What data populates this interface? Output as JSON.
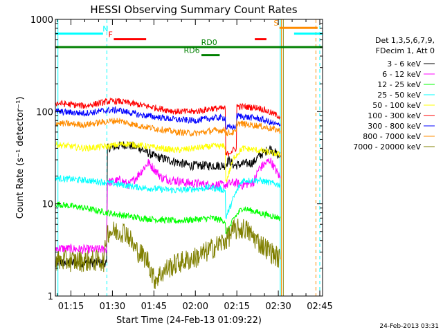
{
  "chart_data": {
    "type": "line",
    "title": "HESSI Observing Summary Count Rates",
    "xlabel": "Start Time (24-Feb-13 01:09:22)",
    "ylabel": "Count Rate (s⁻¹ detector⁻¹)",
    "yscale": "log",
    "ylim": [
      1,
      1000
    ],
    "xlim_minutes": [
      69.37,
      166
    ],
    "x_tick_labels": [
      "01:15",
      "01:30",
      "01:45",
      "02:00",
      "02:15",
      "02:30",
      "02:45"
    ],
    "x_tick_minutes": [
      75,
      90,
      105,
      120,
      135,
      150,
      165
    ],
    "y_tick_labels": [
      "1",
      "10",
      "100",
      "1000"
    ],
    "y_tick_values": [
      1,
      10,
      100,
      1000
    ],
    "legend": {
      "placement": "right",
      "header_line1": "Det 1,3,5,6,7,9,",
      "header_line2": "FDecim 1, Att 0"
    },
    "series": [
      {
        "name": "3 - 6 keV",
        "color": "#000000",
        "x": [
          69.4,
          83,
          87.9,
          88.2,
          95,
          100,
          105,
          110,
          118,
          126,
          130.8,
          132,
          134,
          137,
          141,
          143,
          147,
          150.7
        ],
        "values": [
          2.3,
          2.3,
          2.3,
          40,
          44,
          40,
          33,
          30,
          26,
          26,
          26,
          30,
          26,
          27,
          28,
          33,
          40,
          32
        ]
      },
      {
        "name": "6 - 12 keV",
        "color": "#ff00ff",
        "x": [
          69.4,
          80,
          87.9,
          88.2,
          93,
          96,
          99,
          103,
          108,
          116,
          126,
          130.8,
          134,
          137,
          141,
          143,
          147,
          150.7
        ],
        "values": [
          3.3,
          3.2,
          3.2,
          17,
          18,
          16,
          20,
          28,
          19,
          17,
          16,
          16,
          17,
          16,
          17,
          24,
          30,
          19
        ]
      },
      {
        "name": "12 - 25 keV",
        "color": "#00ff00",
        "x": [
          69.4,
          80,
          88,
          100,
          113,
          126,
          130.8,
          131,
          134,
          137,
          143,
          150.7
        ],
        "values": [
          10,
          9,
          8,
          7,
          6.5,
          7,
          6.5,
          4.5,
          7,
          9,
          8,
          7
        ]
      },
      {
        "name": "25 - 50 keV",
        "color": "#00ffff",
        "x": [
          69.4,
          80,
          88,
          100,
          113,
          126,
          130.8,
          131,
          134,
          137,
          143,
          150.7
        ],
        "values": [
          19,
          18,
          17,
          15,
          14,
          15,
          14,
          7,
          12,
          18,
          18,
          16
        ]
      },
      {
        "name": "50 - 100 keV",
        "color": "#ffff00",
        "x": [
          69.4,
          80,
          88,
          95,
          100,
          113,
          126,
          130.8,
          131,
          134,
          137,
          143,
          150.7
        ],
        "values": [
          44,
          40,
          42,
          45,
          43,
          38,
          42,
          42,
          17,
          32,
          40,
          38,
          34
        ]
      },
      {
        "name": "100 - 300 keV",
        "color": "#ff0000",
        "x": [
          69.4,
          80,
          88,
          92,
          100,
          113,
          120,
          126,
          130.8,
          131,
          134.8,
          135,
          143,
          150.7
        ],
        "values": [
          124,
          115,
          128,
          130,
          118,
          100,
          100,
          108,
          108,
          34,
          40,
          114,
          110,
          88
        ]
      },
      {
        "name": "300 - 800 keV",
        "color": "#0000ff",
        "x": [
          69.4,
          80,
          88,
          92,
          100,
          113,
          120,
          126,
          130.8,
          131,
          134.8,
          135,
          143,
          150.7
        ],
        "values": [
          100,
          96,
          103,
          104,
          92,
          82,
          80,
          85,
          86,
          67,
          68,
          90,
          84,
          70
        ]
      },
      {
        "name": "800 - 7000 keV",
        "color": "#ff8c00",
        "x": [
          69.4,
          80,
          88,
          92,
          100,
          113,
          120,
          126,
          130.8,
          131,
          134.8,
          135,
          143,
          150.7
        ],
        "values": [
          75,
          72,
          78,
          80,
          70,
          60,
          58,
          62,
          63,
          58,
          60,
          75,
          70,
          62
        ]
      },
      {
        "name": "7000 - 20000 keV",
        "color": "#808000",
        "x": [
          69.4,
          80,
          87,
          88,
          95,
          98,
          103,
          105,
          110,
          114,
          120,
          124,
          130.8,
          134,
          138,
          143,
          150.7
        ],
        "values": [
          2.4,
          2.4,
          2.4,
          5,
          5,
          3.3,
          2.4,
          1.5,
          2,
          2.3,
          2.6,
          3,
          4,
          5.2,
          5.4,
          3.8,
          2.5
        ]
      }
    ],
    "mode_bars": [
      {
        "label": "N",
        "color": "#00ffff",
        "start_min": 69.37,
        "end_min": 86.6,
        "value": 700,
        "label_min": 87.5
      },
      {
        "label": "F",
        "color": "#ff0000",
        "start_min": 90.5,
        "end_min": 102.2,
        "value": 610,
        "label_min": 89.3
      },
      {
        "label": "",
        "color": "#ff0000",
        "start_min": 141.5,
        "end_min": 145.7,
        "value": 610
      },
      {
        "label": "RD0",
        "color": "#008000",
        "start_min": 69.37,
        "end_min": 166,
        "value": 500,
        "label_min": 125
      },
      {
        "label": "RD6",
        "color": "#008000",
        "start_min": 122.2,
        "end_min": 128.8,
        "value": 410,
        "label_min": 118.7
      },
      {
        "label": "S",
        "color": "#ff8c00",
        "start_min": 150.4,
        "end_min": 164.2,
        "value": 810,
        "label_min": 149.2
      },
      {
        "label": "",
        "color": "#00ffff",
        "start_min": 155.7,
        "end_min": 166,
        "value": 700
      }
    ],
    "vertical_markers": [
      {
        "minute": 70.3,
        "color": "#00ffff",
        "style": "solid"
      },
      {
        "minute": 88.0,
        "color": "#00ffff",
        "style": "dashed"
      },
      {
        "minute": 150.7,
        "color": "#00ffff",
        "style": "solid"
      },
      {
        "minute": 151.1,
        "color": "#ff8c00",
        "style": "solid"
      },
      {
        "minute": 151.8,
        "color": "#808000",
        "style": "solid"
      },
      {
        "minute": 163.6,
        "color": "#ff8c00",
        "style": "dashed"
      },
      {
        "minute": 165.0,
        "color": "#00ffff",
        "style": "dashed"
      }
    ],
    "footer_timestamp": "24-Feb-2013 03:31"
  }
}
